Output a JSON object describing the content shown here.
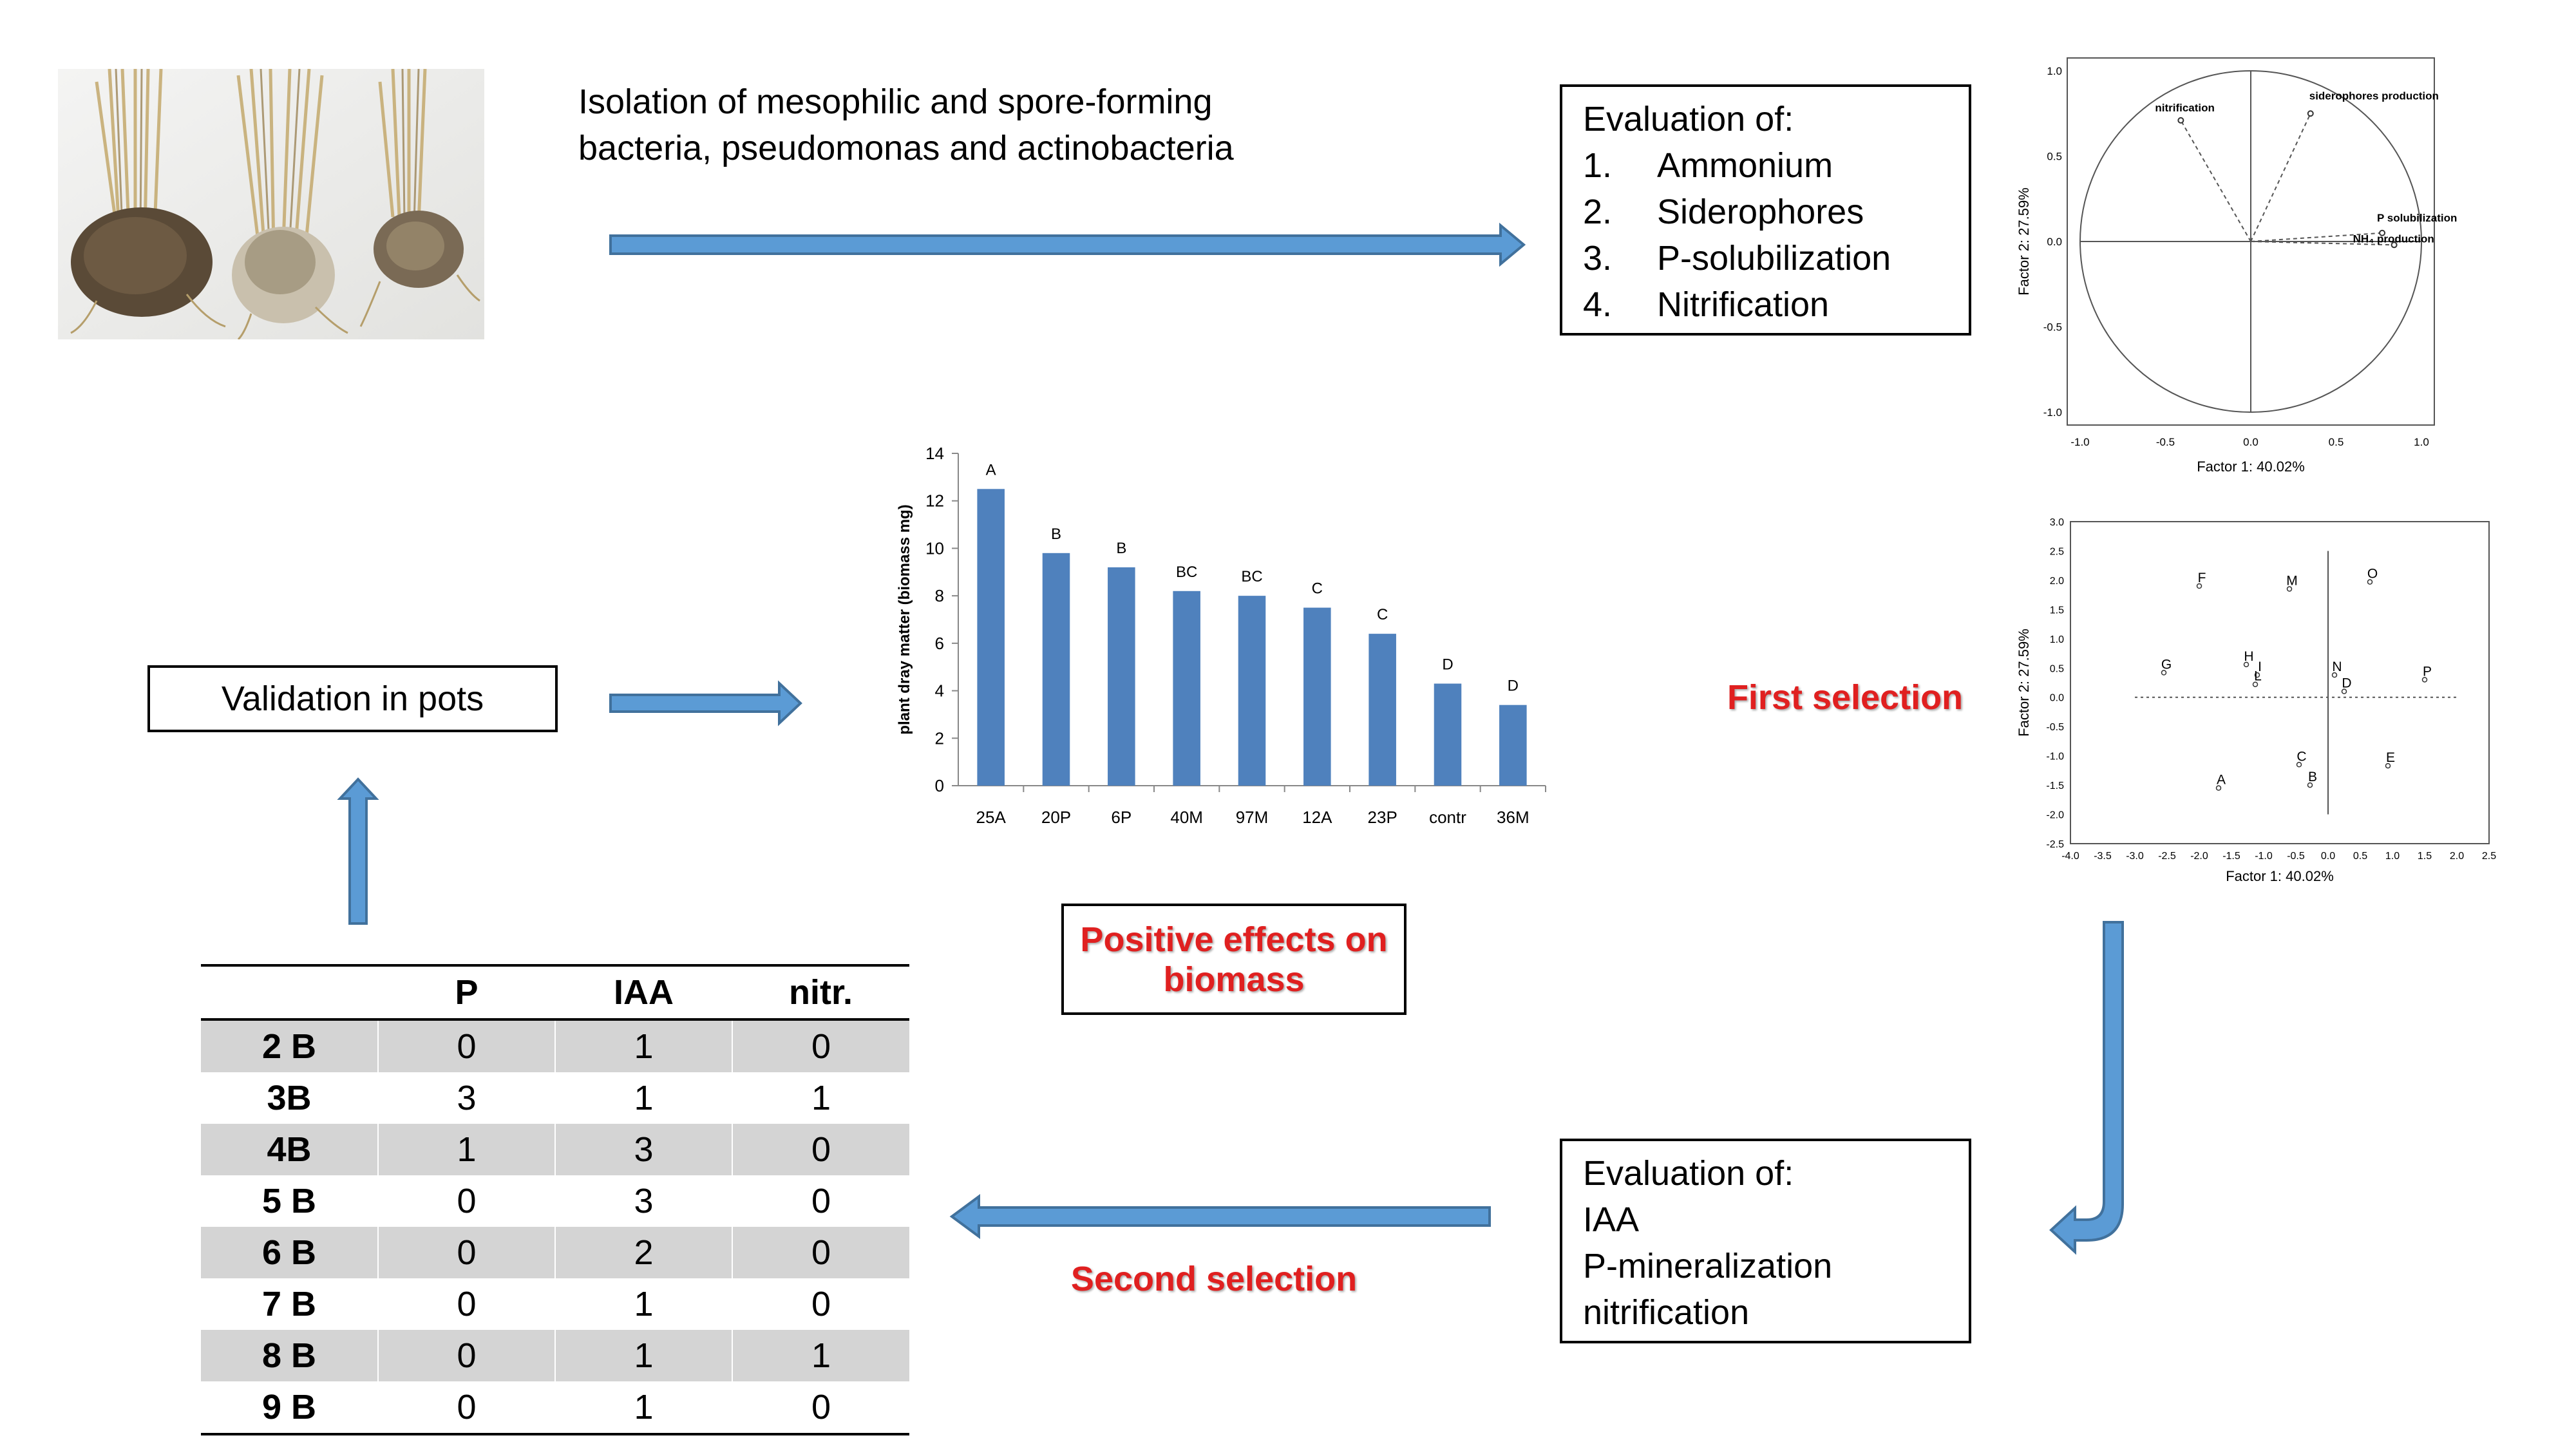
{
  "isolation_text": [
    "Isolation of mesophilic and spore-forming",
    "bacteria, pseudomonas and actinobacteria"
  ],
  "eval1": {
    "title": "Evaluation of:",
    "items": [
      {
        "num": "1.",
        "label": "Ammonium"
      },
      {
        "num": "2.",
        "label": "Siderophores"
      },
      {
        "num": "3.",
        "label": "P-solubilization"
      },
      {
        "num": "4.",
        "label": "Nitrification"
      }
    ]
  },
  "eval2": {
    "title": "Evaluation of:",
    "items": [
      "IAA",
      "P-mineralization",
      "nitrification"
    ]
  },
  "validation_label": "Validation in pots",
  "first_selection": "First selection",
  "second_selection": "Second selection",
  "positive_effects": [
    "Positive effects on",
    "biomass"
  ],
  "colors": {
    "arrow_fill": "#5b9bd5",
    "arrow_stroke": "#41719c",
    "bar": "#4f81bd",
    "red": "#e02020",
    "shade": "#d4d4d4"
  },
  "table": {
    "headers": [
      "",
      "P",
      "IAA",
      "nitr."
    ],
    "rows": [
      [
        "2 B",
        "0",
        "1",
        "0"
      ],
      [
        "3B",
        "3",
        "1",
        "1"
      ],
      [
        "4B",
        "1",
        "3",
        "0"
      ],
      [
        "5 B",
        "0",
        "3",
        "0"
      ],
      [
        "6 B",
        "0",
        "2",
        "0"
      ],
      [
        "7 B",
        "0",
        "1",
        "0"
      ],
      [
        "8 B",
        "0",
        "1",
        "1"
      ],
      [
        "9 B",
        "0",
        "1",
        "0"
      ]
    ]
  },
  "chart_data": [
    {
      "type": "bar",
      "categories": [
        "25A",
        "20P",
        "6P",
        "40M",
        "97M",
        "12A",
        "23P",
        "contr",
        "36M"
      ],
      "values": [
        12.5,
        9.8,
        9.2,
        8.2,
        8.0,
        7.5,
        6.4,
        4.3,
        3.4
      ],
      "data_labels": [
        "A",
        "B",
        "B",
        "BC",
        "BC",
        "C",
        "C",
        "D",
        "D"
      ],
      "ylabel": "plant dray matter (biomass mg)",
      "ylim": [
        0,
        14
      ],
      "yticks": [
        0,
        2,
        4,
        6,
        8,
        10,
        12,
        14
      ],
      "grid": false
    },
    {
      "type": "scatter",
      "subtype": "loading circle",
      "xlabel": "Factor 1: 40.02%",
      "ylabel": "Factor 2: 27.59%",
      "xlim": [
        -1.0,
        1.0
      ],
      "ylim": [
        -1.0,
        1.0
      ],
      "xticks": [
        "-1.0",
        "-0.5",
        "0.0",
        "0.5",
        "1.0"
      ],
      "yticks": [
        "1.0",
        "0.5",
        "0.0",
        "-0.5",
        "-1.0"
      ],
      "points": [
        {
          "label": "nitrification",
          "x": -0.41,
          "y": 0.71
        },
        {
          "label": "siderophores production",
          "x": 0.35,
          "y": 0.75
        },
        {
          "label": "P solubilization",
          "x": 0.77,
          "y": 0.05
        },
        {
          "label": "NH₄ production",
          "x": 0.84,
          "y": -0.02
        }
      ]
    },
    {
      "type": "scatter",
      "xlabel": "Factor 1: 40.02%",
      "ylabel": "Factor 2: 27.59%",
      "xlim": [
        -4.0,
        2.5
      ],
      "ylim": [
        -2.5,
        3.0
      ],
      "xticks": [
        "-4.0",
        "-3.5",
        "-3.0",
        "-2.5",
        "-2.0",
        "-1.5",
        "-1.0",
        "-0.5",
        "0.0",
        "0.5",
        "1.0",
        "1.5",
        "2.0",
        "2.5"
      ],
      "yticks": [
        "3.0",
        "2.5",
        "2.0",
        "1.5",
        "1.0",
        "0.5",
        "0.0",
        "-0.5",
        "-1.0",
        "-1.5",
        "-2.0",
        "-2.5"
      ],
      "points": [
        {
          "label": "F",
          "x": -2.0,
          "y": 1.9
        },
        {
          "label": "M",
          "x": -0.6,
          "y": 1.85
        },
        {
          "label": "O",
          "x": 0.65,
          "y": 1.97
        },
        {
          "label": "H",
          "x": -1.27,
          "y": 0.56
        },
        {
          "label": "I",
          "x": -1.1,
          "y": 0.38
        },
        {
          "label": "L",
          "x": -1.13,
          "y": 0.22
        },
        {
          "label": "N",
          "x": 0.1,
          "y": 0.38
        },
        {
          "label": "D",
          "x": 0.25,
          "y": 0.1
        },
        {
          "label": "G",
          "x": -2.55,
          "y": 0.42
        },
        {
          "label": "P",
          "x": 1.5,
          "y": 0.3
        },
        {
          "label": "C",
          "x": -0.45,
          "y": -1.15
        },
        {
          "label": "E",
          "x": 0.93,
          "y": -1.17
        },
        {
          "label": "A",
          "x": -1.7,
          "y": -1.55
        },
        {
          "label": "B",
          "x": -0.28,
          "y": -1.5
        }
      ]
    }
  ]
}
